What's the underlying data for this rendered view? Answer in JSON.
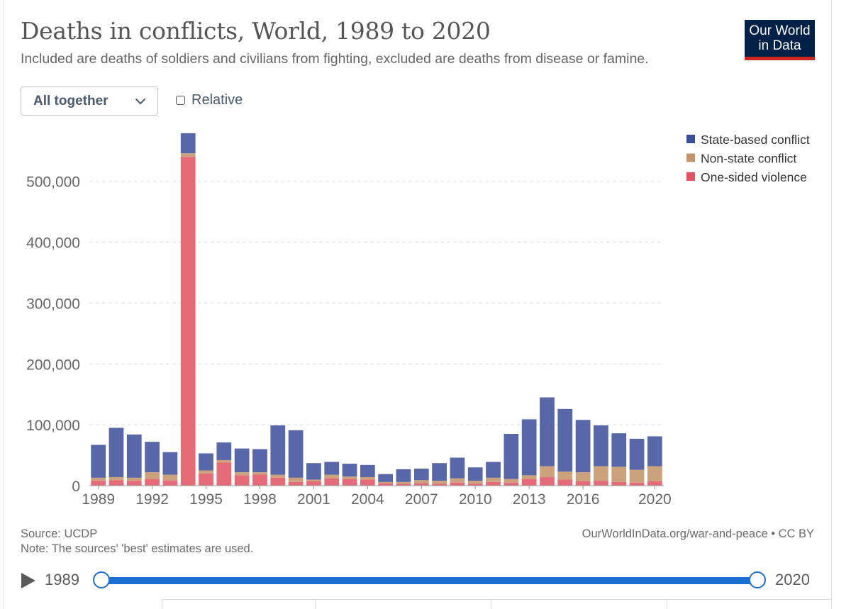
{
  "title": "Deaths in conflicts, World, 1989 to 2020",
  "subtitle": "Included are deaths of soldiers and civilians from fighting, excluded are deaths from disease or famine.",
  "logo": {
    "line1": "Our World",
    "line2": "in Data"
  },
  "controls": {
    "select_value": "All together",
    "relative_label": "Relative"
  },
  "footer": {
    "source": "Source: UCDP",
    "note": "Note: The sources' 'best' estimates are used.",
    "link": "OurWorldInData.org/war-and-peace • CC BY"
  },
  "timeline": {
    "start": "1989",
    "end": "2020"
  },
  "colors": {
    "state": "#3c4e9a",
    "nonstate": "#c49368",
    "onesided": "#e15362",
    "grid": "#dddddd",
    "axis": "#666666"
  },
  "chart_data": {
    "type": "bar",
    "stacked": true,
    "title": "Deaths in conflicts, World, 1989 to 2020",
    "xlabel": "",
    "ylabel": "",
    "ylim": [
      0,
      580000
    ],
    "yticks": [
      0,
      100000,
      200000,
      300000,
      400000,
      500000
    ],
    "ytick_labels": [
      "0",
      "100,000",
      "200,000",
      "300,000",
      "400,000",
      "500,000"
    ],
    "xtick_labels": [
      "1989",
      "1992",
      "1995",
      "1998",
      "2001",
      "2004",
      "2007",
      "2010",
      "2013",
      "2016",
      "2020"
    ],
    "legend_position": "top-right",
    "categories": [
      "1989",
      "1990",
      "1991",
      "1992",
      "1993",
      "1994",
      "1995",
      "1996",
      "1997",
      "1998",
      "1999",
      "2000",
      "2001",
      "2002",
      "2003",
      "2004",
      "2005",
      "2006",
      "2007",
      "2008",
      "2009",
      "2010",
      "2011",
      "2012",
      "2013",
      "2014",
      "2015",
      "2016",
      "2017",
      "2018",
      "2019",
      "2020"
    ],
    "series": [
      {
        "name": "One-sided violence",
        "key": "onesided",
        "values": [
          8000,
          9000,
          8000,
          11000,
          8000,
          540000,
          20000,
          38000,
          17000,
          18000,
          13000,
          6000,
          7000,
          12000,
          11000,
          10000,
          4000,
          3000,
          4000,
          3000,
          5000,
          3000,
          6000,
          5000,
          11000,
          14000,
          10000,
          7000,
          8000,
          6000,
          5000,
          7000
        ]
      },
      {
        "name": "Non-state conflict",
        "key": "nonstate",
        "values": [
          5000,
          5000,
          5000,
          11000,
          10000,
          6000,
          5000,
          4000,
          5000,
          4000,
          5000,
          7000,
          3000,
          6000,
          4000,
          4000,
          2000,
          3000,
          5000,
          5000,
          7000,
          5000,
          7000,
          6000,
          6000,
          18000,
          13000,
          15000,
          24000,
          25000,
          21000,
          25000
        ]
      },
      {
        "name": "State-based conflict",
        "key": "state",
        "values": [
          54000,
          81000,
          71000,
          50000,
          37000,
          33000,
          28000,
          29000,
          39000,
          38000,
          81000,
          78000,
          27000,
          21000,
          21000,
          20000,
          13000,
          21000,
          19000,
          29000,
          34000,
          22000,
          26000,
          74000,
          92000,
          113000,
          103000,
          86000,
          67000,
          55000,
          51000,
          49000
        ]
      }
    ]
  }
}
